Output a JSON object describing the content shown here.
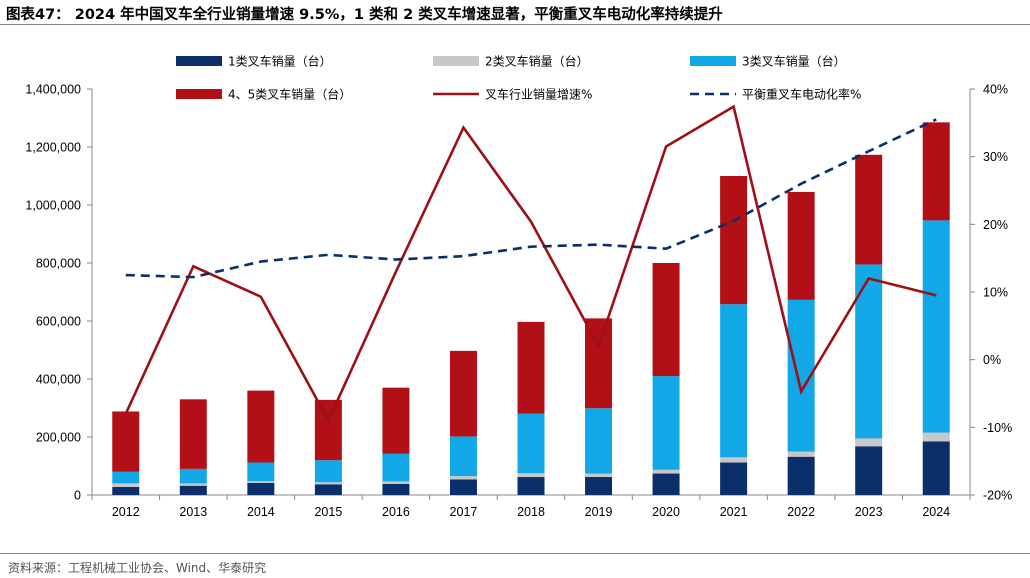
{
  "title": "图表47：  2024 年中国叉车全行业销量增速 9.5%，1 类和 2 类叉车增速显著，平衡重叉车电动化率持续提升",
  "source": "资料来源：工程机械工业协会、Wind、华泰研究",
  "colors": {
    "class1": "#0b2f6b",
    "class2": "#c8c8c8",
    "class3": "#12a7e6",
    "class45": "#b30f16",
    "growth_line": "#9c1016",
    "electrification_line": "#0b2f6b"
  },
  "chart_data": {
    "type": "bar",
    "stacked": true,
    "title": "",
    "xlabel": "",
    "ylabel": "",
    "categories": [
      "2012",
      "2013",
      "2014",
      "2015",
      "2016",
      "2017",
      "2018",
      "2019",
      "2020",
      "2021",
      "2022",
      "2023",
      "2024"
    ],
    "ylim": [
      0,
      1400000
    ],
    "y2lim": [
      -20,
      40
    ],
    "y_ticks": [
      "0",
      "200,000",
      "400,000",
      "600,000",
      "800,000",
      "1,000,000",
      "1,200,000",
      "1,400,000"
    ],
    "y2_ticks": [
      "-20%",
      "-10%",
      "0%",
      "10%",
      "20%",
      "30%",
      "40%"
    ],
    "series": [
      {
        "name": "1类叉车销量（台）",
        "type": "bar",
        "axis": "left",
        "color_key": "class1",
        "values": [
          28000,
          32000,
          42000,
          37000,
          38000,
          54000,
          62000,
          62000,
          74000,
          112000,
          132000,
          168000,
          185000
        ]
      },
      {
        "name": "2类叉车销量（台）",
        "type": "bar",
        "axis": "left",
        "color_key": "class2",
        "values": [
          12000,
          8000,
          6000,
          7000,
          9000,
          11000,
          13000,
          12000,
          13000,
          18000,
          18000,
          27000,
          30000
        ]
      },
      {
        "name": "3类叉车销量（台）",
        "type": "bar",
        "axis": "left",
        "color_key": "class3",
        "values": [
          40000,
          50000,
          64000,
          76000,
          95000,
          137000,
          206000,
          225000,
          323000,
          528000,
          523000,
          600000,
          732000
        ]
      },
      {
        "name": "4、5类叉车销量（台）",
        "type": "bar",
        "axis": "left",
        "color_key": "class45",
        "values": [
          208000,
          240000,
          248000,
          208000,
          228000,
          295000,
          316000,
          310000,
          390000,
          442000,
          372000,
          378000,
          338000
        ]
      },
      {
        "name": "叉车行业销量增速%",
        "type": "line",
        "axis": "right",
        "color_key": "growth_line",
        "dashed": false,
        "values": [
          -8.0,
          13.8,
          9.3,
          -9.0,
          13.0,
          34.3,
          20.4,
          2.0,
          31.5,
          37.4,
          -4.7,
          12.0,
          9.5
        ]
      },
      {
        "name": "平衡重叉车电动化率%",
        "type": "line",
        "axis": "right",
        "color_key": "electrification_line",
        "dashed": true,
        "values": [
          12.5,
          12.2,
          14.5,
          15.5,
          14.8,
          15.3,
          16.7,
          17.0,
          16.4,
          20.5,
          26.0,
          30.8,
          35.5
        ]
      }
    ],
    "legend": {
      "placement": "top",
      "rows": [
        [
          "1类叉车销量（台）",
          "2类叉车销量（台）",
          "3类叉车销量（台）"
        ],
        [
          "4、5类叉车销量（台）",
          "叉车行业销量增速%",
          "平衡重叉车电动化率%"
        ]
      ]
    },
    "grid": false
  }
}
